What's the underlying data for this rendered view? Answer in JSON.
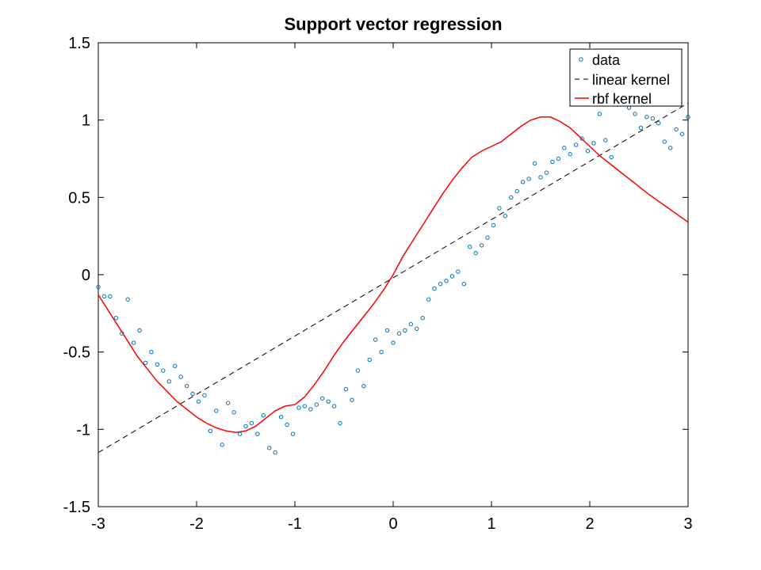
{
  "chart_data": {
    "type": "scatter",
    "title": "Support vector regression",
    "xlabel": "",
    "ylabel": "",
    "xlim": [
      -3,
      3
    ],
    "ylim": [
      -1.5,
      1.5
    ],
    "xticks": [
      "-3",
      "-2",
      "-1",
      "0",
      "1",
      "2",
      "3"
    ],
    "yticks": [
      "1.5",
      "1",
      "0.5",
      "0",
      "-0.5",
      "-1",
      "-1.5"
    ],
    "grid": false,
    "legend_position": "top-right",
    "series": [
      {
        "name": "data",
        "kind": "markers",
        "color": "#0072bd",
        "x": [
          -3.0,
          -2.94,
          -2.88,
          -2.82,
          -2.76,
          -2.7,
          -2.64,
          -2.58,
          -2.52,
          -2.46,
          -2.4,
          -2.34,
          -2.28,
          -2.22,
          -2.16,
          -2.1,
          -2.04,
          -1.98,
          -1.92,
          -1.86,
          -1.8,
          -1.74,
          -1.68,
          -1.62,
          -1.56,
          -1.5,
          -1.44,
          -1.38,
          -1.32,
          -1.26,
          -1.2,
          -1.14,
          -1.08,
          -1.02,
          -0.96,
          -0.9,
          -0.84,
          -0.78,
          -0.72,
          -0.66,
          -0.6,
          -0.54,
          -0.48,
          -0.42,
          -0.36,
          -0.3,
          -0.24,
          -0.18,
          -0.12,
          -0.06,
          0.0,
          0.06,
          0.12,
          0.18,
          0.24,
          0.3,
          0.36,
          0.42,
          0.48,
          0.54,
          0.6,
          0.66,
          0.72,
          0.78,
          0.84,
          0.9,
          0.96,
          1.02,
          1.08,
          1.14,
          1.2,
          1.26,
          1.32,
          1.38,
          1.44,
          1.5,
          1.56,
          1.62,
          1.68,
          1.74,
          1.8,
          1.86,
          1.92,
          1.98,
          2.04,
          2.1,
          2.16,
          2.22,
          2.28,
          2.34,
          2.4,
          2.46,
          2.52,
          2.58,
          2.64,
          2.7,
          2.76,
          2.82,
          2.88,
          2.94,
          3.0
        ],
        "y": [
          -0.08,
          -0.14,
          -0.14,
          -0.28,
          -0.38,
          -0.16,
          -0.44,
          -0.36,
          -0.57,
          -0.5,
          -0.58,
          -0.62,
          -0.69,
          -0.59,
          -0.66,
          -0.72,
          -0.77,
          -0.82,
          -0.78,
          -1.01,
          -0.88,
          -1.1,
          -0.83,
          -0.89,
          -1.03,
          -0.98,
          -0.96,
          -1.03,
          -0.91,
          -1.12,
          -1.15,
          -0.92,
          -0.97,
          -1.03,
          -0.86,
          -0.85,
          -0.87,
          -0.84,
          -0.8,
          -0.82,
          -0.85,
          -0.96,
          -0.74,
          -0.81,
          -0.62,
          -0.72,
          -0.55,
          -0.42,
          -0.5,
          -0.36,
          -0.44,
          -0.38,
          -0.36,
          -0.32,
          -0.35,
          -0.28,
          -0.16,
          -0.09,
          -0.06,
          -0.04,
          -0.01,
          0.02,
          -0.06,
          0.18,
          0.14,
          0.19,
          0.24,
          0.32,
          0.43,
          0.38,
          0.5,
          0.54,
          0.6,
          0.62,
          0.72,
          0.63,
          0.66,
          0.73,
          0.75,
          0.82,
          0.78,
          0.84,
          0.88,
          0.8,
          0.85,
          1.04,
          0.87,
          0.76,
          1.1,
          1.13,
          1.08,
          1.04,
          0.95,
          1.02,
          1.01,
          0.98,
          0.86,
          0.82,
          0.94,
          0.91,
          1.02
        ]
      },
      {
        "name": "linear kernel",
        "kind": "line",
        "color": "#000000",
        "dash": "dashed",
        "x": [
          -3,
          3
        ],
        "y": [
          -1.15,
          1.11
        ]
      },
      {
        "name": "rbf kernel",
        "kind": "line",
        "color": "#ff0000",
        "x": [
          -3.0,
          -2.8,
          -2.6,
          -2.4,
          -2.2,
          -2.0,
          -1.9,
          -1.8,
          -1.7,
          -1.6,
          -1.5,
          -1.4,
          -1.3,
          -1.2,
          -1.1,
          -1.0,
          -0.9,
          -0.8,
          -0.7,
          -0.6,
          -0.5,
          -0.4,
          -0.3,
          -0.2,
          -0.1,
          0.0,
          0.1,
          0.2,
          0.3,
          0.4,
          0.5,
          0.6,
          0.7,
          0.8,
          0.9,
          1.0,
          1.1,
          1.2,
          1.3,
          1.4,
          1.5,
          1.6,
          1.7,
          1.8,
          1.9,
          2.0,
          2.1,
          2.2,
          2.4,
          2.6,
          2.8,
          3.0
        ],
        "y": [
          -0.13,
          -0.33,
          -0.53,
          -0.69,
          -0.82,
          -0.92,
          -0.96,
          -0.99,
          -1.01,
          -1.02,
          -1.01,
          -0.98,
          -0.93,
          -0.88,
          -0.85,
          -0.84,
          -0.79,
          -0.71,
          -0.62,
          -0.52,
          -0.43,
          -0.35,
          -0.27,
          -0.19,
          -0.1,
          0.0,
          0.12,
          0.22,
          0.32,
          0.42,
          0.52,
          0.61,
          0.69,
          0.76,
          0.8,
          0.83,
          0.86,
          0.91,
          0.96,
          1.0,
          1.02,
          1.02,
          0.99,
          0.95,
          0.89,
          0.83,
          0.77,
          0.72,
          0.62,
          0.52,
          0.43,
          0.34
        ]
      }
    ]
  }
}
